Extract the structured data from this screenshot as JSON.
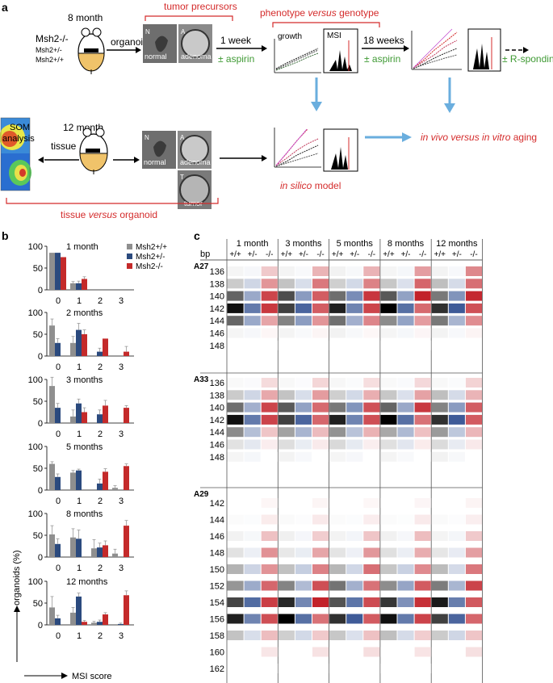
{
  "panel_a": {
    "letter": "a",
    "age_top": "8 month",
    "age_bottom": "12 month",
    "genotypes": [
      "Msh2-/-",
      "Msh2+/-",
      "Msh2+/+"
    ],
    "arrow_organoid": "organoid",
    "tumor_precursors": "tumor precursors",
    "img_letters": [
      "N",
      "A",
      "T"
    ],
    "img_normal": "normal",
    "img_adenoma": "adenoma",
    "img_tumor": "tumor",
    "one_week": "1 week",
    "aspirin": "± aspirin",
    "pheno_1": "phenotype ",
    "pheno_2": "versus",
    "pheno_3": " genotype",
    "growth": "growth",
    "msi": "MSI",
    "eighteen_weeks": "18 weeks",
    "r_spondin": "± R-spondin",
    "som_1": "SOM",
    "som_2": "analysis",
    "tissue": "tissue",
    "in_silico_1": "in silico",
    "in_silico_2": " model",
    "aging_1": "in vivo ",
    "aging_2": "versus",
    "aging_3": " in vitro",
    "aging_4": " aging",
    "tvo_1": "tissue ",
    "tvo_2": "versus",
    "tvo_3": " organoid"
  },
  "panel_b": {
    "letter": "b",
    "ylabel": "organoids (%)",
    "xlabel": "MSI score",
    "legend": [
      {
        "label": "Msh2+/+",
        "color": "#8f8f8f"
      },
      {
        "label": "Msh2+/-",
        "color": "#2b4a7e"
      },
      {
        "label": "Msh2-/-",
        "color": "#c42a2a"
      }
    ]
  },
  "panel_c": {
    "letter": "c",
    "bp_label": "bp",
    "timepoints": [
      "1 month",
      "3 months",
      "5 months",
      "8 months",
      "12 months"
    ],
    "genotype_labels": [
      "+/+",
      "+/-",
      "-/-"
    ],
    "markers": [
      {
        "name": "A27",
        "bp": [
          136,
          138,
          140,
          142,
          144,
          146,
          148
        ]
      },
      {
        "name": "A33",
        "bp": [
          136,
          138,
          140,
          142,
          144,
          146,
          148
        ]
      },
      {
        "name": "A29",
        "bp": [
          142,
          144,
          146,
          148,
          150,
          152,
          154,
          156,
          158,
          160,
          162
        ]
      }
    ]
  },
  "chart_data": [
    {
      "type": "bar",
      "title": "1 month",
      "categories": [
        "0",
        "1",
        "2",
        "3"
      ],
      "ylim": [
        0,
        100
      ],
      "yticks": [
        "0",
        "50",
        "100"
      ],
      "series": [
        {
          "name": "Msh2+/+",
          "values": [
            85,
            15,
            0,
            0
          ],
          "errors": [
            0,
            4,
            0,
            0
          ]
        },
        {
          "name": "Msh2+/-",
          "values": [
            85,
            15,
            0,
            0
          ],
          "errors": [
            0,
            5,
            0,
            0
          ]
        },
        {
          "name": "Msh2-/-",
          "values": [
            75,
            25,
            0,
            0
          ],
          "errors": [
            0,
            5,
            0,
            0
          ]
        }
      ]
    },
    {
      "type": "bar",
      "title": "2 months",
      "categories": [
        "0",
        "1",
        "2",
        "3"
      ],
      "ylim": [
        0,
        100
      ],
      "yticks": [
        "0",
        "50",
        "100"
      ],
      "series": [
        {
          "name": "Msh2+/+",
          "values": [
            70,
            30,
            0,
            0
          ],
          "errors": [
            15,
            15,
            0,
            0
          ]
        },
        {
          "name": "Msh2+/-",
          "values": [
            30,
            60,
            10,
            0
          ],
          "errors": [
            10,
            15,
            8,
            0
          ]
        },
        {
          "name": "Msh2-/-",
          "values": [
            0,
            50,
            40,
            10
          ],
          "errors": [
            0,
            10,
            0,
            12
          ]
        }
      ]
    },
    {
      "type": "bar",
      "title": "3 months",
      "categories": [
        "0",
        "1",
        "2",
        "3"
      ],
      "ylim": [
        0,
        100
      ],
      "yticks": [
        "0",
        "50",
        "100"
      ],
      "series": [
        {
          "name": "Msh2+/+",
          "values": [
            85,
            15,
            0,
            0
          ],
          "errors": [
            20,
            15,
            0,
            0
          ]
        },
        {
          "name": "Msh2+/-",
          "values": [
            35,
            45,
            20,
            0
          ],
          "errors": [
            10,
            10,
            10,
            0
          ]
        },
        {
          "name": "Msh2-/-",
          "values": [
            0,
            25,
            40,
            35
          ],
          "errors": [
            0,
            10,
            12,
            5
          ]
        }
      ]
    },
    {
      "type": "bar",
      "title": "5 months",
      "categories": [
        "0",
        "1",
        "2",
        "3"
      ],
      "ylim": [
        0,
        100
      ],
      "yticks": [
        "0",
        "50",
        "100"
      ],
      "series": [
        {
          "name": "Msh2+/+",
          "values": [
            60,
            40,
            0,
            5
          ],
          "errors": [
            5,
            5,
            0,
            5
          ]
        },
        {
          "name": "Msh2+/-",
          "values": [
            30,
            45,
            15,
            0
          ],
          "errors": [
            7,
            3,
            10,
            0
          ]
        },
        {
          "name": "Msh2-/-",
          "values": [
            0,
            0,
            42,
            55
          ],
          "errors": [
            0,
            0,
            7,
            5
          ]
        }
      ]
    },
    {
      "type": "bar",
      "title": "8 months",
      "categories": [
        "0",
        "1",
        "2",
        "3"
      ],
      "ylim": [
        0,
        100
      ],
      "yticks": [
        "0",
        "50",
        "100"
      ],
      "series": [
        {
          "name": "Msh2+/+",
          "values": [
            52,
            45,
            20,
            8
          ],
          "errors": [
            20,
            20,
            20,
            10
          ]
        },
        {
          "name": "Msh2+/-",
          "values": [
            30,
            42,
            22,
            0
          ],
          "errors": [
            12,
            20,
            10,
            0
          ]
        },
        {
          "name": "Msh2-/-",
          "values": [
            0,
            0,
            27,
            72
          ],
          "errors": [
            0,
            0,
            10,
            12
          ]
        }
      ]
    },
    {
      "type": "bar",
      "title": "12 months",
      "categories": [
        "0",
        "1",
        "2",
        "3"
      ],
      "ylim": [
        0,
        100
      ],
      "yticks": [
        "0",
        "50",
        "100"
      ],
      "series": [
        {
          "name": "Msh2+/+",
          "values": [
            40,
            28,
            5,
            0
          ],
          "errors": [
            25,
            12,
            3,
            0
          ]
        },
        {
          "name": "Msh2+/-",
          "values": [
            15,
            65,
            7,
            2
          ],
          "errors": [
            7,
            8,
            4,
            2
          ]
        },
        {
          "name": "Msh2-/-",
          "values": [
            0,
            7,
            24,
            68
          ],
          "errors": [
            0,
            3,
            4,
            10
          ]
        }
      ]
    }
  ]
}
